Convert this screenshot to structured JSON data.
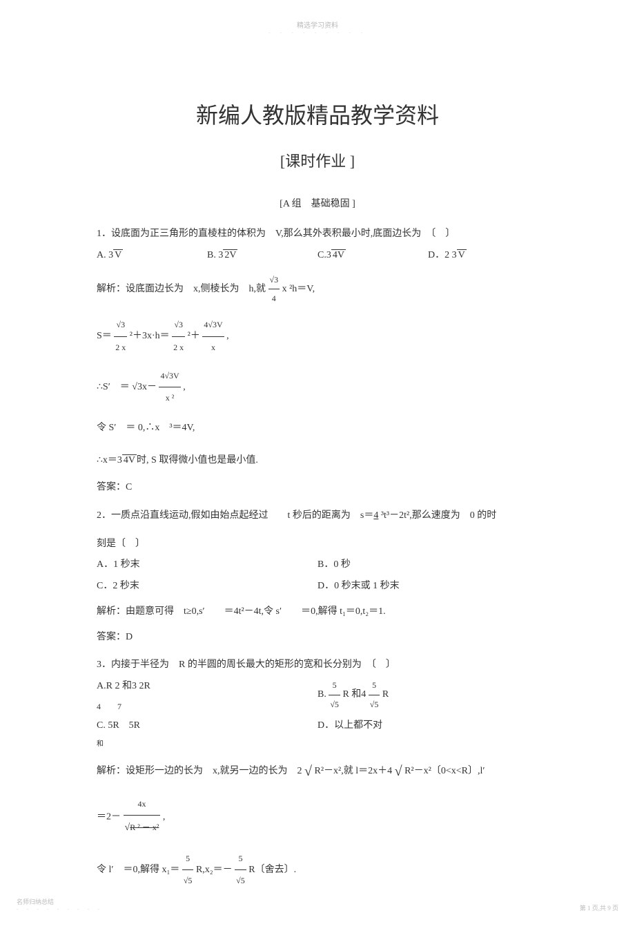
{
  "typography": {
    "title_fontsize": 32,
    "subtitle_fontsize": 22,
    "body_fontsize": 14,
    "footer_fontsize": 9,
    "watermark_fontsize": 10,
    "font_family": "SimSun",
    "body_color": "#333333",
    "watermark_color": "#bbbbbb",
    "dots_color": "#dddddd",
    "background_color": "#ffffff"
  },
  "header": {
    "watermark": "精选学习资料",
    "dots": "- - - - - - - - -"
  },
  "titles": {
    "main": "新编人教版精品教学资料",
    "sub": "[课时作业 ]",
    "section": "[A 组　基础稳固 ]"
  },
  "q1": {
    "stem": "1．设底面为正三角形的直棱柱的体积为　V,那么其外表积最小时,底面边长为　〔　〕",
    "options": {
      "A": "A. 3√V",
      "B": "B. 3√2V",
      "C": "C.3√4V",
      "D": "D．2 3√V"
    },
    "analysis_label": "解析：设底面边长为　x,侧棱长为　h,就",
    "analysis_formula1_right": " x ²h＝V,",
    "frac_sqrt3_4": {
      "num": "√3",
      "den": "4"
    },
    "S_left": "S＝",
    "frac_sqrt3_2a": {
      "num": "√3",
      "den": "2 x"
    },
    "S_mid": " ²＋3x·h＝",
    "frac_sqrt3_2b": {
      "num": "√3",
      "den": "2 x"
    },
    "S_mid2": " ²＋ ",
    "frac_4sqrt3V_x": {
      "num": "4√3V",
      "den": "x"
    },
    "S_end": " ,",
    "Sprime_left": "∴S′　＝ √3x－",
    "frac_4sqrt3V_x2": {
      "num": "4√3V",
      "den": "x ²"
    },
    "Sprime_end": " ,",
    "line4": "令 S′　＝ 0,∴x　³＝4V,",
    "line5": "∴x＝3√4V时, S 取得微小值也是最小值.",
    "answer": "答案：C"
  },
  "q2": {
    "stem1": "2．一质点沿直线运动,假如由始点起经过　　t 秒后的距离为　s＝",
    "stem_frac": "4",
    "stem2": " ³t³－2t²,那么速度为　0 的时",
    "stem3": "刻是〔　〕",
    "options": {
      "A": "A．1 秒末",
      "B": "B．0 秒",
      "C": "C．2 秒末",
      "D": "D．0 秒末或 1 秒末"
    },
    "analysis": "解析：由题意可得　t≥0,s′　　＝4t²－4t,令 s′　　＝0,解得 t₁＝0,t₂＝1.",
    "answer": "答案：D"
  },
  "q3": {
    "stem": "3．内接于半径为　R 的半圆的周长最大的矩形的宽和长分别为　〔　〕",
    "options": {
      "A_line1": "A.R 2 和3 2R",
      "A_line2_fracs": "4　　7",
      "B": "B. √5 R 和4 √5 R",
      "B_frac5": "5",
      "C": "C. 5R　5R",
      "C_sub": "和",
      "D": "D．以上都不对"
    },
    "analysis1_a": "解析：设矩形一边的长为　x,就另一边的长为　2",
    "analysis1_b": "R²－x²,就 l＝2x＋4",
    "analysis1_c": "R²－x²〔0<x<R〕,l′",
    "analysis2_a": "＝2－",
    "frac_4x": {
      "num": "4x",
      "den": "R ² － x²"
    },
    "analysis2_b": ",",
    "analysis3_a": "令 l′　＝0,解得 x₁＝",
    "frac_5_sqrt5_a": {
      "num": "5",
      "den": "√5"
    },
    "analysis3_b": "R,x₂＝－",
    "frac_5_sqrt5_b": {
      "num": "5",
      "den": "√5"
    },
    "analysis3_c": "R〔舍去〕."
  },
  "footer": {
    "left": "名师归纳总结",
    "left_dots": "- - - - - - - - -",
    "right": "第 1 页,共 9 页"
  }
}
